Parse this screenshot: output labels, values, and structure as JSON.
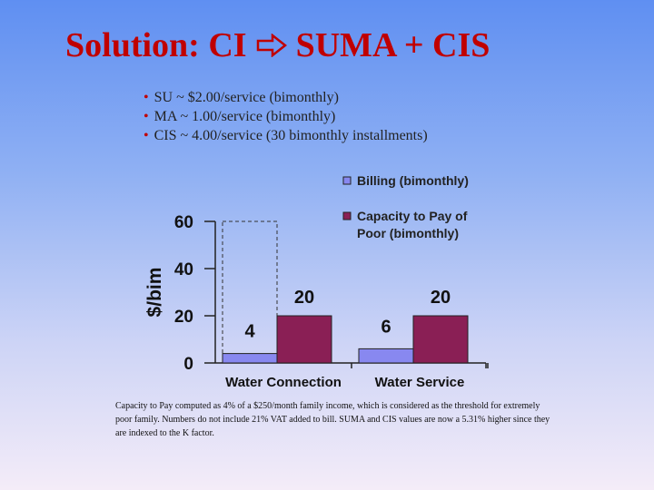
{
  "slide": {
    "title_left": "Solution:  CI",
    "title_right": "SUMA + CIS",
    "title_arrow_icon": "hollow-right-arrow-icon",
    "bullets": [
      "SU ~ $2.00/service (bimonthly)",
      "MA ~  1.00/service (bimonthly)",
      "CIS ~  4.00/service (30 bimonthly installments)"
    ],
    "footnote": "Capacity to Pay computed as 4% of a $250/month family income, which is considered as the threshold for extremely poor family. Numbers do not include 21% VAT added to bill. SUMA and CIS values are now a 5.31% higher since they are indexed to the K factor."
  },
  "chart_data": {
    "type": "bar",
    "categories": [
      "Water Connection",
      "Water Service"
    ],
    "series": [
      {
        "name": "Billing (bimonthly)",
        "values": [
          4,
          6
        ],
        "color": "#8888f0"
      },
      {
        "name": "Capacity to Pay of Poor (bimonthly)",
        "values": [
          20,
          20
        ],
        "color": "#8a1f55"
      }
    ],
    "dashed_outline_values": [
      60,
      5
    ],
    "data_labels": [
      "4",
      "20",
      "6",
      "20"
    ],
    "ylabel": "$/bim",
    "ylim": [
      0,
      60
    ],
    "yticks": [
      0,
      20,
      40,
      60
    ],
    "legend_position": "top-right",
    "legend_lines": [
      [
        "Billing (bimonthly)"
      ],
      [
        "Capacity to Pay of",
        "Poor (bimonthly)"
      ]
    ]
  }
}
